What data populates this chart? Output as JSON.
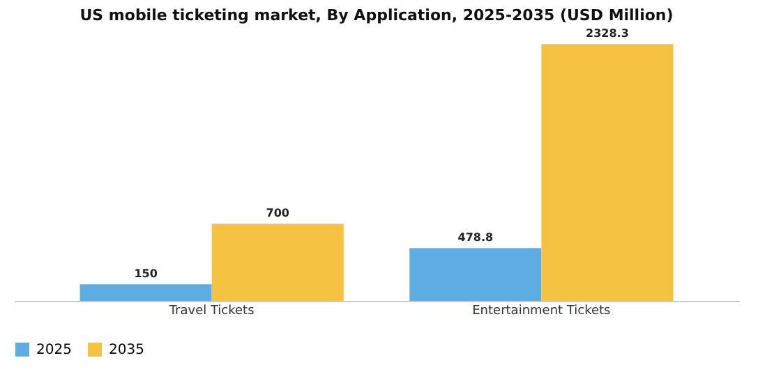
{
  "chart_data": {
    "type": "bar",
    "title": "US mobile ticketing market, By Application, 2025-2035 (USD Million)",
    "categories": [
      "Travel Tickets",
      "Entertainment Tickets"
    ],
    "series": [
      {
        "name": "2025",
        "color": "#5dade2",
        "values": [
          150,
          478.8
        ]
      },
      {
        "name": "2035",
        "color": "#f5c242",
        "values": [
          700,
          2328.3
        ]
      }
    ],
    "data_labels": true,
    "legend": "bottom",
    "grid": false
  }
}
